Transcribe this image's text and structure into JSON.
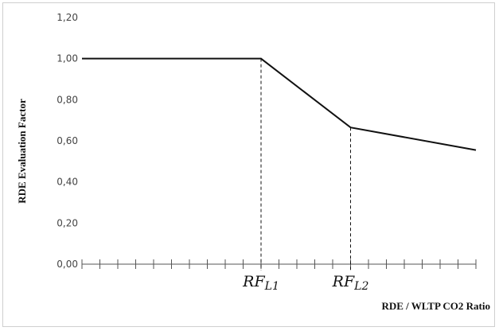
{
  "chart_data": {
    "type": "line",
    "title": "",
    "xlabel": "RDE / WLTP CO2 Ratio",
    "ylabel": "RDE Evaluation Factor",
    "ylim": [
      0,
      1.2
    ],
    "ytick_labels": [
      "0,00",
      "0,20",
      "0,40",
      "0,60",
      "0,80",
      "1,00",
      "1,20"
    ],
    "x_tick_count": 22,
    "grid": false,
    "reference_lines": [
      {
        "main": "RF",
        "sub": "L1"
      },
      {
        "main": "RF",
        "sub": "L2"
      }
    ],
    "series": [
      {
        "x": [
          0,
          10,
          15,
          22
        ],
        "y": [
          1.0,
          1.0,
          0.665,
          0.555
        ]
      }
    ]
  }
}
